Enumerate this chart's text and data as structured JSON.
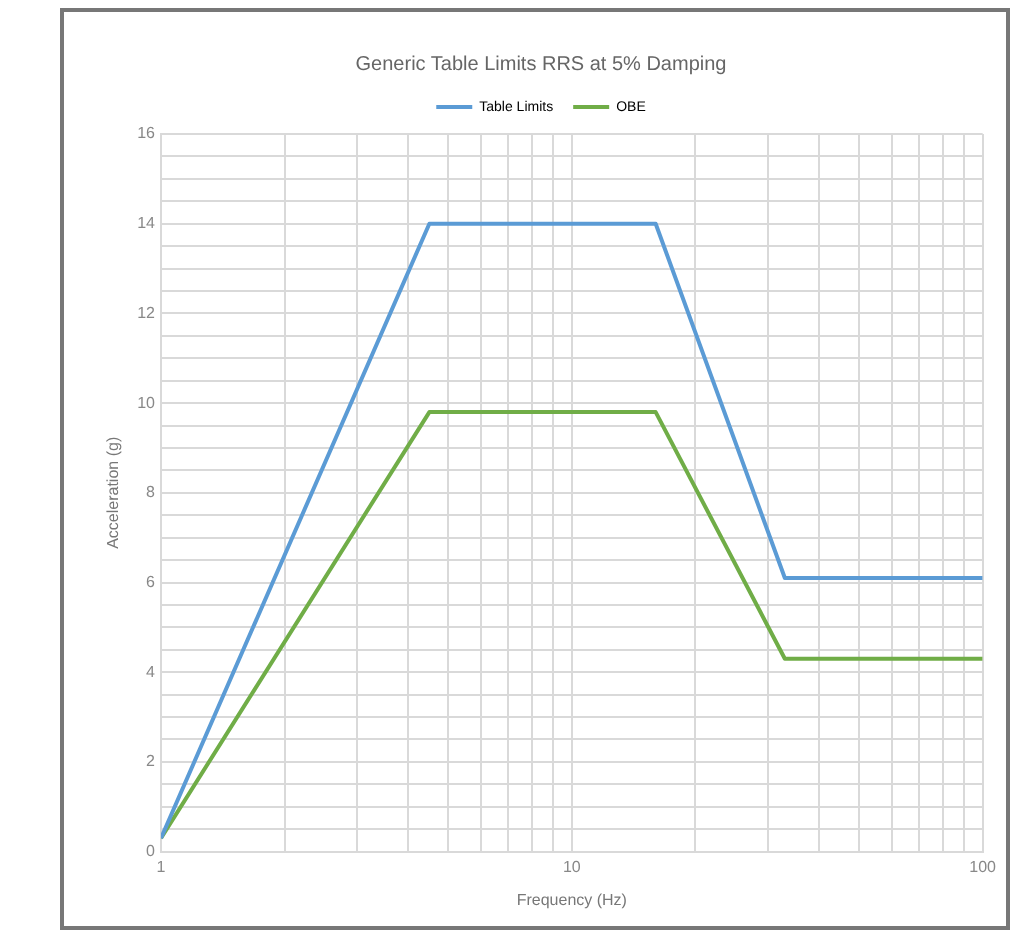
{
  "chart_data": {
    "type": "line",
    "title": "Generic Table Limits RRS at 5% Damping",
    "xlabel": "Frequency (Hz)",
    "ylabel": "Acceleration (g)",
    "log": "x",
    "xlim": [
      1,
      100
    ],
    "xticks": [
      1,
      {
        "value": 2,
        "label": null
      },
      {
        "value": 3,
        "label": null
      },
      {
        "value": 4,
        "label": null
      },
      {
        "value": 5,
        "label": null
      },
      {
        "value": 6,
        "label": null
      },
      {
        "value": 7,
        "label": null
      },
      {
        "value": 8,
        "label": null
      },
      {
        "value": 9,
        "label": null
      },
      10,
      {
        "value": 20,
        "label": null
      },
      {
        "value": 30,
        "label": null
      },
      {
        "value": 40,
        "label": null
      },
      {
        "value": 50,
        "label": null
      },
      {
        "value": 60,
        "label": null
      },
      {
        "value": 70,
        "label": null
      },
      {
        "value": 80,
        "label": null
      },
      {
        "value": 90,
        "label": null
      },
      100
    ],
    "ylim": [
      0,
      16
    ],
    "yticks": [
      0,
      {
        "value": 0.5,
        "label": null
      },
      {
        "value": 1,
        "label": null
      },
      {
        "value": 1.5,
        "label": null
      },
      2,
      {
        "value": 2.5,
        "label": null
      },
      {
        "value": 3,
        "label": null
      },
      {
        "value": 3.5,
        "label": null
      },
      4,
      {
        "value": 4.5,
        "label": null
      },
      {
        "value": 5,
        "label": null
      },
      {
        "value": 5.5,
        "label": null
      },
      6,
      {
        "value": 6.5,
        "label": null
      },
      {
        "value": 7,
        "label": null
      },
      {
        "value": 7.5,
        "label": null
      },
      8,
      {
        "value": 8.5,
        "label": null
      },
      {
        "value": 9,
        "label": null
      },
      {
        "value": 9.5,
        "label": null
      },
      10,
      {
        "value": 10.5,
        "label": null
      },
      {
        "value": 11,
        "label": null
      },
      {
        "value": 11.5,
        "label": null
      },
      12,
      {
        "value": 12.5,
        "label": null
      },
      {
        "value": 13,
        "label": null
      },
      {
        "value": 13.5,
        "label": null
      },
      14,
      {
        "value": 14.5,
        "label": null
      },
      {
        "value": 15,
        "label": null
      },
      {
        "value": 15.5,
        "label": null
      },
      16
    ],
    "grid": true,
    "legend": "top",
    "marker": "none",
    "line_style": "solid",
    "series": [
      {
        "name": "Table Limits",
        "color": "#5b9bd5",
        "x": [
          1,
          4.5,
          16,
          33,
          100
        ],
        "values": [
          0.3,
          14,
          14,
          6.1,
          6.1
        ]
      },
      {
        "name": "OBE",
        "color": "#70ad47",
        "x": [
          1,
          4.5,
          16,
          33,
          100
        ],
        "values": [
          0.3,
          9.8,
          9.8,
          4.3,
          4.3
        ]
      }
    ]
  }
}
